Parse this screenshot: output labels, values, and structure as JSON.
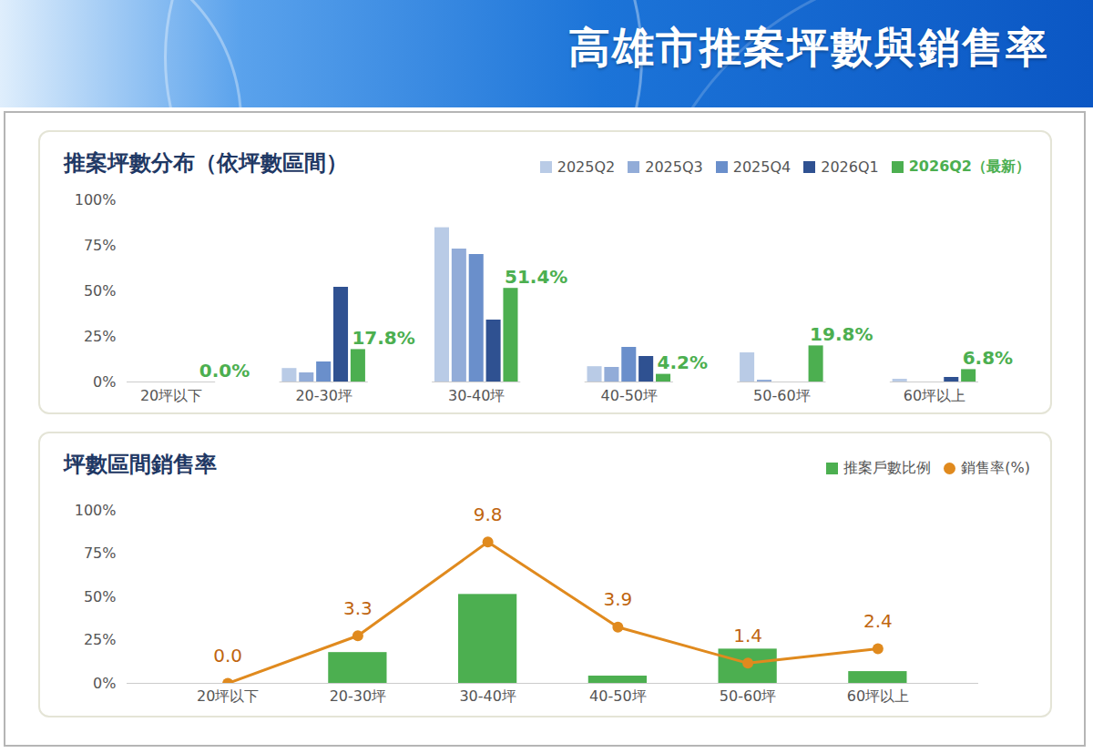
{
  "title": "高雄市推案坪數與銷售率",
  "chart_data": [
    {
      "type": "bar",
      "title": "推案坪數分布（依坪數區間）",
      "categories": [
        "20坪以下",
        "20-30坪",
        "30-40坪",
        "40-50坪",
        "50-60坪",
        "60坪以上"
      ],
      "series": [
        {
          "name": "2025Q2",
          "color": "#b9cbe6",
          "values": [
            0,
            7.4,
            84.7,
            8.4,
            16,
            1.5
          ]
        },
        {
          "name": "2025Q3",
          "color": "#92acd8",
          "values": [
            0,
            5,
            73,
            8,
            1,
            0
          ]
        },
        {
          "name": "2025Q4",
          "color": "#6a8fcb",
          "values": [
            0,
            11,
            70,
            19,
            0,
            0
          ]
        },
        {
          "name": "2026Q1",
          "color": "#2f5191",
          "values": [
            0,
            52,
            34,
            14,
            0,
            2.5
          ]
        },
        {
          "name": "2026Q2（最新）",
          "color": "#4caf50",
          "values": [
            0,
            17.8,
            51.4,
            4.2,
            19.8,
            6.8
          ],
          "data_labels": true,
          "value_labels": [
            "0.0%",
            "17.8%",
            "51.4%",
            "4.2%",
            "19.8%",
            "6.8%"
          ]
        }
      ],
      "ylim": [
        0,
        100
      ],
      "yticks": [
        {
          "value": 0,
          "label": "0%"
        },
        {
          "value": 25,
          "label": "25%"
        },
        {
          "value": 50,
          "label": "50%"
        },
        {
          "value": 75,
          "label": "75%"
        },
        {
          "value": 100,
          "label": "100%"
        }
      ],
      "grid": false,
      "legend": "top-right"
    },
    {
      "type": "bar",
      "title": "坪數區間銷售率",
      "categories": [
        "20坪以下",
        "20-30坪",
        "30-40坪",
        "40-50坪",
        "50-60坪",
        "60坪以上"
      ],
      "series": [
        {
          "name": "推案戶數比例",
          "type": "bar",
          "color": "#4caf50",
          "values": [
            0,
            17.8,
            51.4,
            4.2,
            19.8,
            6.8
          ]
        },
        {
          "name": "銷售率(%)",
          "type": "line",
          "axis": "y2",
          "color": "#e08a1e",
          "marker": "circle",
          "values": [
            0,
            3.3,
            9.8,
            3.9,
            1.4,
            2.4
          ],
          "data_labels": true,
          "value_labels": [
            "0.0",
            "3.3",
            "9.8",
            "3.9",
            "1.4",
            "2.4"
          ]
        }
      ],
      "ylim": [
        0,
        100
      ],
      "yticks": [
        {
          "value": 0,
          "label": "0%"
        },
        {
          "value": 25,
          "label": "25%"
        },
        {
          "value": 50,
          "label": "50%"
        },
        {
          "value": 75,
          "label": "75%"
        },
        {
          "value": 100,
          "label": "100%"
        }
      ],
      "y2lim": [
        0,
        12
      ],
      "y2ticks": [],
      "grid": false,
      "legend": "top-right"
    }
  ]
}
